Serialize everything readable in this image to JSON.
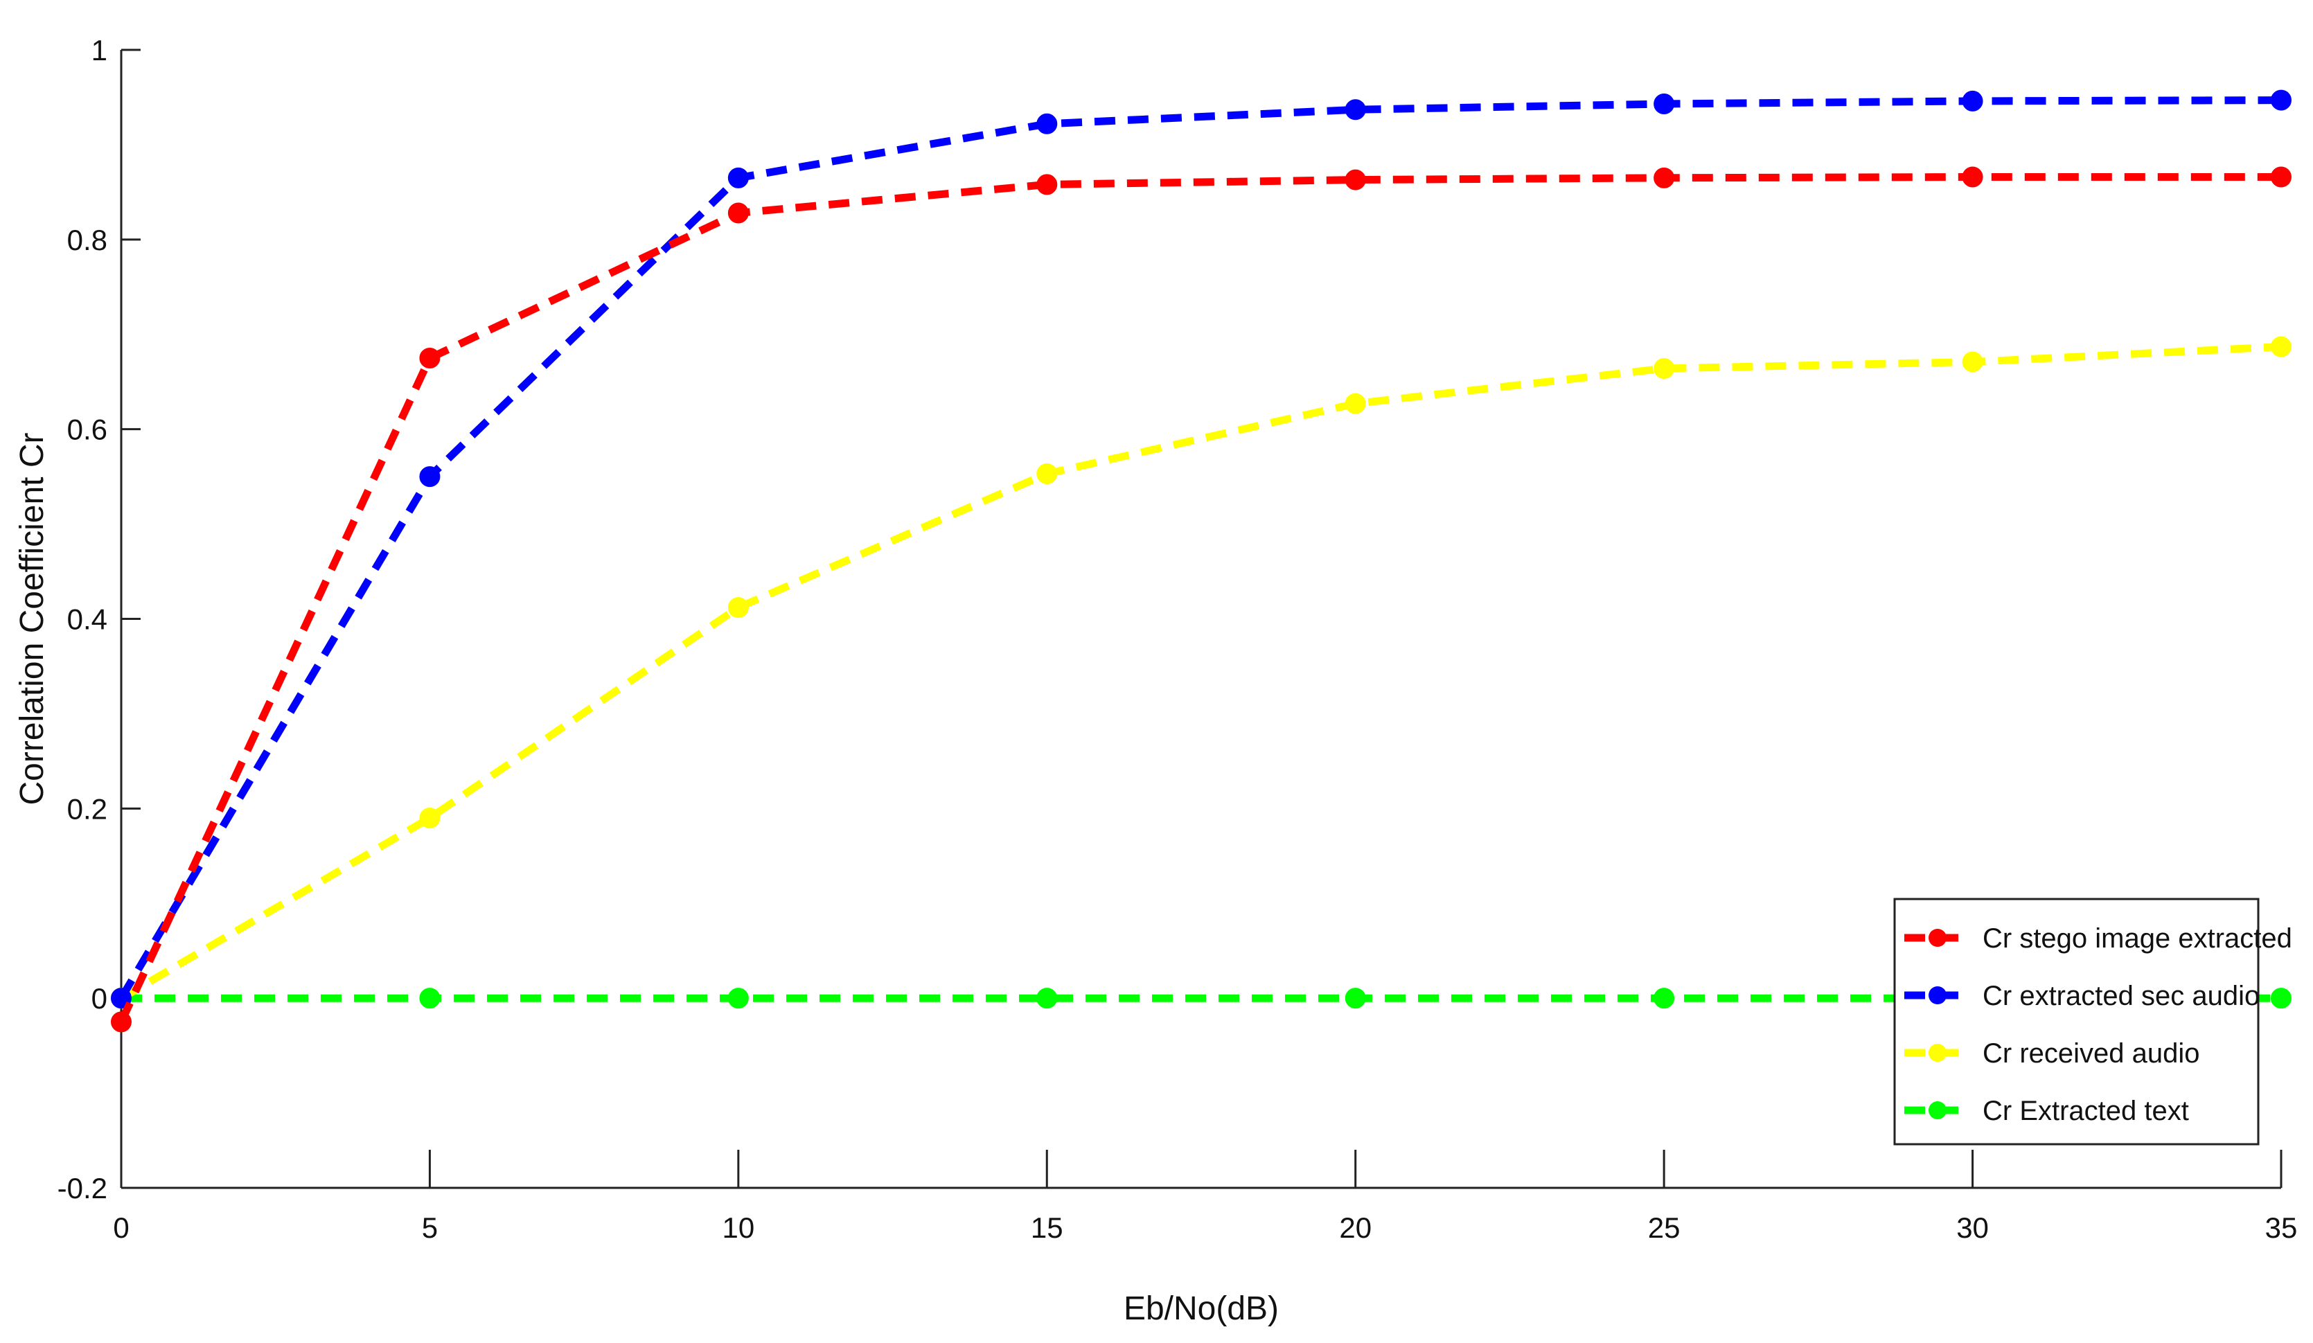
{
  "chart_data": {
    "type": "line",
    "title": "",
    "xlabel": "Eb/No(dB)",
    "ylabel": "Correlation Coefficient Cr",
    "xlim": [
      0,
      35
    ],
    "ylim": [
      -0.2,
      1
    ],
    "x_ticks": [
      0,
      5,
      10,
      15,
      20,
      25,
      30,
      35
    ],
    "y_ticks": [
      -0.2,
      0,
      0.2,
      0.4,
      0.6,
      0.8,
      1
    ],
    "y_tick_labels": [
      "-0.2",
      "0",
      "0.2",
      "0.4",
      "0.6",
      "0.8",
      "1"
    ],
    "grid": false,
    "legend_position": "bottom-right",
    "x": [
      0,
      5,
      10,
      15,
      20,
      25,
      30,
      35
    ],
    "series": [
      {
        "name": "Cr stego image extracted",
        "color": "#ff0000",
        "values": [
          -0.025,
          0.675,
          0.828,
          0.858,
          0.863,
          0.865,
          0.866,
          0.866
        ]
      },
      {
        "name": "Cr extracted sec audio",
        "color": "#0000ff",
        "values": [
          0.0,
          0.55,
          0.865,
          0.922,
          0.937,
          0.943,
          0.946,
          0.947
        ]
      },
      {
        "name": "Cr received audio",
        "color": "#ffff00",
        "values": [
          0.0,
          0.19,
          0.412,
          0.553,
          0.627,
          0.664,
          0.671,
          0.687
        ]
      },
      {
        "name": "Cr Extracted text",
        "color": "#00ff00",
        "values": [
          0.0,
          0.0,
          0.0,
          0.0,
          0.0,
          0.0,
          0.0,
          0.0
        ]
      }
    ]
  }
}
